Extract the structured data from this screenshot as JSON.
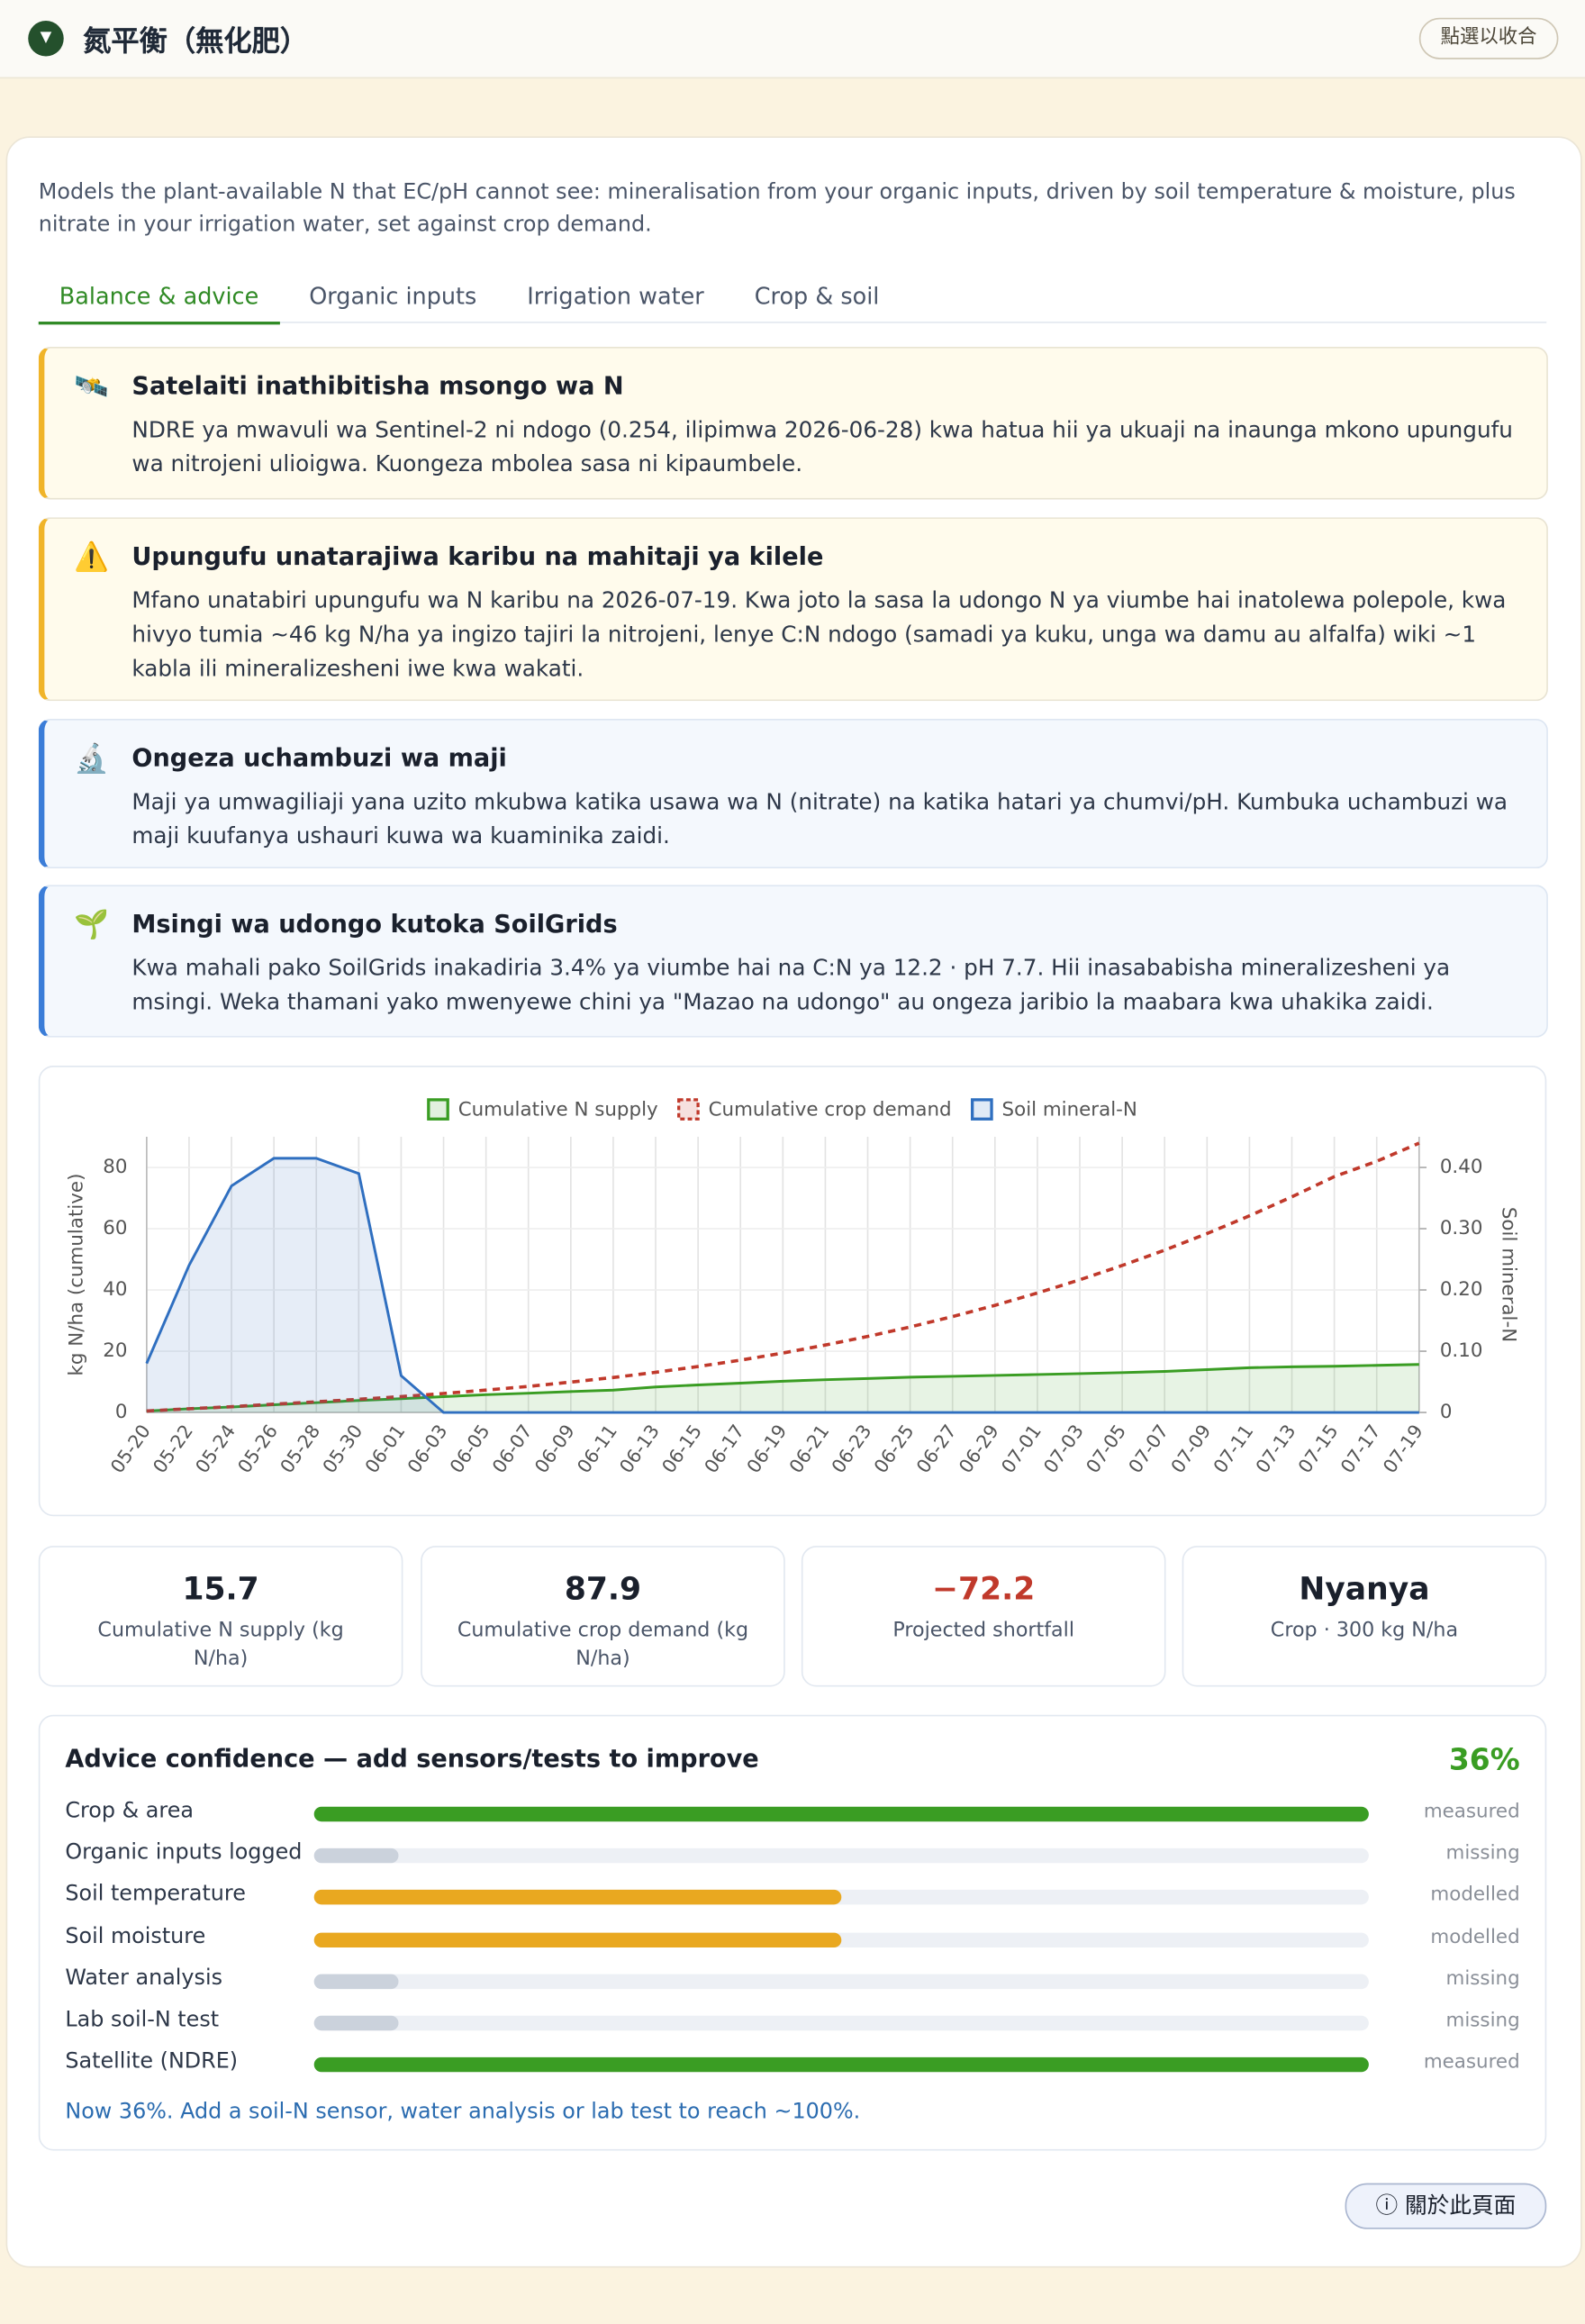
{
  "header": {
    "title": "氮平衡（無化肥）",
    "toggle": "點選以收合"
  },
  "description": "Models the plant-available N that EC/pH cannot see: mineralisation from your organic inputs, driven by soil temperature & moisture, plus nitrate in your irrigation water, set against crop demand.",
  "tabs": [
    "Balance & advice",
    "Organic inputs",
    "Irrigation water",
    "Crop & soil"
  ],
  "alerts": [
    {
      "title": "Satelaiti inathibitisha msongo wa N",
      "body": "NDRE ya mwavuli wa Sentinel-2 ni ndogo (0.254, ilipimwa 2026-06-28) kwa hatua hii ya ukuaji na inaunga mkono upungufu wa nitrojeni ulioigwa. Kuongeza mbolea sasa ni kipaumbele."
    },
    {
      "title": "Upungufu unatarajiwa karibu na mahitaji ya kilele",
      "body": "Mfano unatabiri upungufu wa N karibu na 2026-07-19. Kwa joto la sasa la udongo N ya viumbe hai inatolewa polepole, kwa hivyo tumia ~46 kg N/ha ya ingizo tajiri la nitrojeni, lenye C:N ndogo (samadi ya kuku, unga wa damu au alfalfa) wiki ~1 kabla ili mineralizesheni iwe kwa wakati."
    },
    {
      "title": "Ongeza uchambuzi wa maji",
      "body": "Maji ya umwagiliaji yana uzito mkubwa katika usawa wa N (nitrate) na katika hatari ya chumvi/pH. Kumbuka uchambuzi wa maji kuufanya ushauri kuwa wa kuaminika zaidi."
    },
    {
      "title": "Msingi wa udongo kutoka SoilGrids",
      "body": "Kwa mahali pako SoilGrids inakadiria 3.4% ya viumbe hai na C:N ya 12.2 · pH 7.7. Hii inasababisha mineralizesheni ya msingi. Weka thamani yako mwenyewe chini ya \"Mazao na udongo\" au ongeza jaribio la maabara kwa uhakika zaidi."
    }
  ],
  "chart_data": {
    "type": "line",
    "categories": [
      "05-20",
      "05-22",
      "05-24",
      "05-26",
      "05-28",
      "05-30",
      "06-01",
      "06-03",
      "06-05",
      "06-07",
      "06-09",
      "06-11",
      "06-13",
      "06-15",
      "06-17",
      "06-19",
      "06-21",
      "06-23",
      "06-25",
      "06-27",
      "06-29",
      "07-01",
      "07-03",
      "07-05",
      "07-07",
      "07-09",
      "07-11",
      "07-13",
      "07-15",
      "07-17",
      "07-19"
    ],
    "series": [
      {
        "name": "Cumulative N supply",
        "color": "#3a9d23",
        "fill": true,
        "values": [
          0.5,
          1.2,
          1.8,
          2.5,
          3.2,
          3.9,
          4.5,
          5.2,
          5.8,
          6.3,
          6.8,
          7.3,
          8.3,
          9.0,
          9.6,
          10.2,
          10.7,
          11.1,
          11.5,
          11.8,
          12.1,
          12.4,
          12.7,
          13.0,
          13.4,
          14.0,
          14.6,
          14.9,
          15.1,
          15.4,
          15.7
        ]
      },
      {
        "name": "Cumulative crop demand",
        "color": "#c0392b",
        "dashed": true,
        "values": [
          0.5,
          1.2,
          1.9,
          2.7,
          3.5,
          4.3,
          5.2,
          6.2,
          7.3,
          8.5,
          9.9,
          11.4,
          13.1,
          15.0,
          17.1,
          19.4,
          22.0,
          24.8,
          27.9,
          31.3,
          35.0,
          39.0,
          43.3,
          48.0,
          53.0,
          58.4,
          64.2,
          70.4,
          77.0,
          82.0,
          87.9
        ]
      },
      {
        "name": "Soil mineral-N",
        "color": "#2f6fc0",
        "fill": true,
        "axis": "y2",
        "values": [
          0.08,
          0.24,
          0.37,
          0.415,
          0.415,
          0.39,
          0.06,
          0,
          0,
          0,
          0,
          0,
          0,
          0,
          0,
          0,
          0,
          0,
          0,
          0,
          0,
          0,
          0,
          0,
          0,
          0,
          0,
          0,
          0,
          0,
          0
        ]
      }
    ],
    "ylabel": "kg N/ha (cumulative)",
    "y2label": "Soil mineral-N",
    "ylim": [
      0,
      90
    ],
    "yticks": [
      0,
      20,
      40,
      60,
      80
    ],
    "y2lim": [
      0,
      0.45
    ],
    "y2ticks": [
      0,
      {
        "value": 0.1,
        "label": "0.10"
      },
      {
        "value": 0.2,
        "label": "0.20"
      },
      {
        "value": 0.3,
        "label": "0.30"
      },
      {
        "value": 0.4,
        "label": "0.40"
      }
    ],
    "grid": true,
    "legend": "top"
  },
  "stats": [
    {
      "value": "15.7",
      "label": "Cumulative N supply (kg N/ha)"
    },
    {
      "value": "87.9",
      "label": "Cumulative crop demand (kg N/ha)"
    },
    {
      "value": "−72.2",
      "label": "Projected shortfall"
    },
    {
      "value": "Nyanya",
      "label": "Crop · 300 kg N/ha"
    }
  ],
  "confidence": {
    "title": "Advice confidence — add sensors/tests to improve",
    "overall": "36%",
    "rows": [
      {
        "label": "Crop & area",
        "value": 100,
        "status": "measured",
        "color": "#3a9d23"
      },
      {
        "label": "Organic inputs logged",
        "value": 8,
        "status": "missing",
        "color": "#cbd2dc"
      },
      {
        "label": "Soil temperature",
        "value": 50,
        "status": "modelled",
        "color": "#e9a820"
      },
      {
        "label": "Soil moisture",
        "value": 50,
        "status": "modelled",
        "color": "#e9a820"
      },
      {
        "label": "Water analysis",
        "value": 8,
        "status": "missing",
        "color": "#cbd2dc"
      },
      {
        "label": "Lab soil-N test",
        "value": 8,
        "status": "missing",
        "color": "#cbd2dc"
      },
      {
        "label": "Satellite (NDRE)",
        "value": 100,
        "status": "measured",
        "color": "#3a9d23"
      }
    ],
    "note": "Now 36%. Add a soil-N sensor, water analysis or lab test to reach ~100%."
  },
  "about": "ⓘ 關於此頁面"
}
